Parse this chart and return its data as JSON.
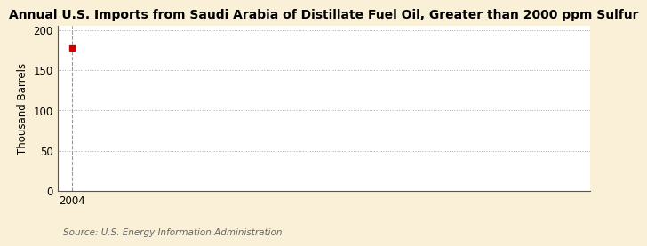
{
  "title": "Annual U.S. Imports from Saudi Arabia of Distillate Fuel Oil, Greater than 2000 ppm Sulfur",
  "ylabel": "Thousand Barrels",
  "source": "Source: U.S. Energy Information Administration",
  "fig_bg_color": "#FAF0D7",
  "plot_bg_color": "#FFFFFF",
  "data_x": [
    2004
  ],
  "data_y": [
    178
  ],
  "marker_color": "#CC0000",
  "marker_style": "s",
  "marker_size": 4,
  "xlim": [
    2003.4,
    2025
  ],
  "ylim": [
    0,
    205
  ],
  "yticks": [
    0,
    50,
    100,
    150,
    200
  ],
  "xticks": [
    2004
  ],
  "grid_color": "#AAAAAA",
  "grid_linestyle": ":",
  "grid_linewidth": 0.7,
  "vline_x": 2004,
  "vline_color": "#999999",
  "vline_linestyle": "--",
  "vline_linewidth": 0.8,
  "title_fontsize": 10,
  "title_fontweight": "bold",
  "axis_label_fontsize": 8.5,
  "tick_fontsize": 8.5,
  "source_fontsize": 7.5,
  "spine_color": "#555555",
  "spine_linewidth": 0.8
}
